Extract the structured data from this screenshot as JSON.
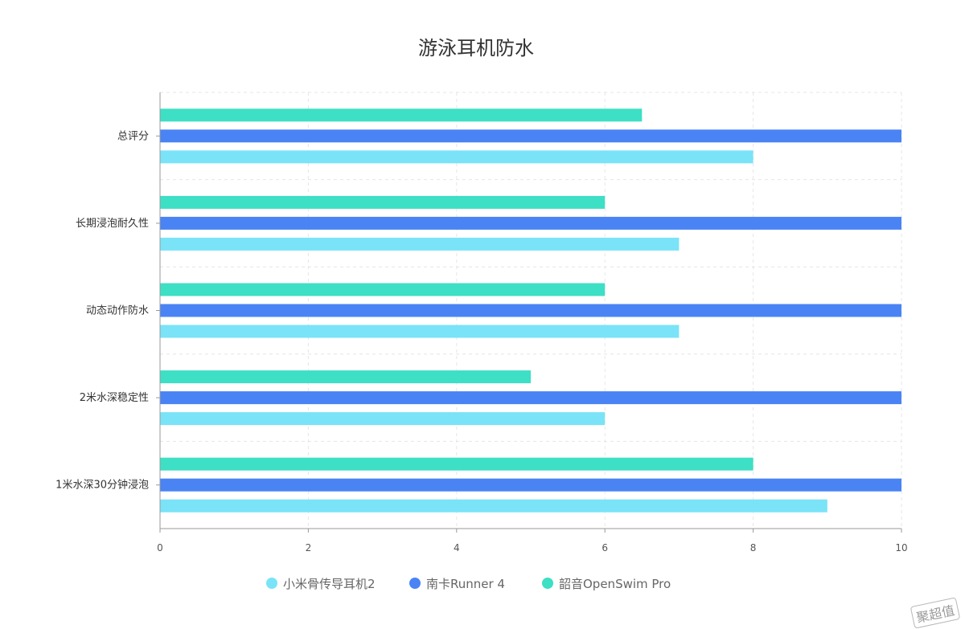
{
  "watermark": "聚超值",
  "chart_data": {
    "type": "bar",
    "orientation": "horizontal",
    "title": "游泳耳机防水",
    "categories": [
      "总评分",
      "长期浸泡耐久性",
      "动态动作防水",
      "2米水深稳定性",
      "1米水深30分钟浸泡"
    ],
    "series": [
      {
        "name": "小米骨传导耳机2",
        "color": "#7ae3f7",
        "values": [
          8,
          7,
          7,
          6,
          9
        ]
      },
      {
        "name": "南卡Runner 4",
        "color": "#4a84f4",
        "values": [
          10,
          10,
          10,
          10,
          10
        ]
      },
      {
        "name": "韶音OpenSwim Pro",
        "color": "#3ddfc5",
        "values": [
          6.5,
          6,
          6,
          5,
          8
        ]
      }
    ],
    "xlim": [
      0,
      10
    ],
    "xticks": [
      "0",
      "2",
      "4",
      "6",
      "8",
      "10"
    ],
    "grid": true,
    "legend_position": "bottom"
  }
}
